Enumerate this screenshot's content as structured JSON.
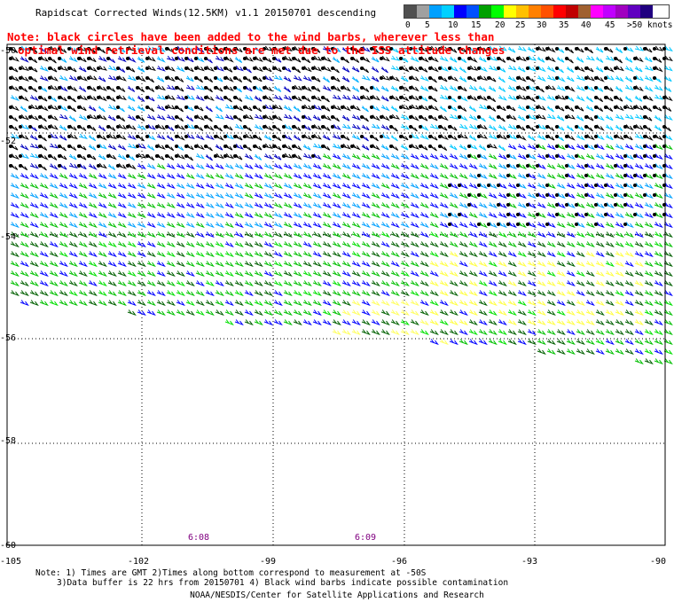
{
  "title": "Rapidscat Corrected Winds(12.5KM) v1.1 20150701 descending",
  "note": {
    "line1": "Note: black circles have been added to the wind barbs, wherever less than",
    "line2": "optimal wind retrieval conditions are met due to the ISS attitude changes"
  },
  "legend": {
    "colors": [
      "#505050",
      "#a0a0a0",
      "#00a0ff",
      "#00d0ff",
      "#0000ff",
      "#0050ff",
      "#00a000",
      "#00ff00",
      "#ffff00",
      "#ffc000",
      "#ff8000",
      "#ff5000",
      "#ff0000",
      "#c00000",
      "#a06030",
      "#ff00ff",
      "#c000ff",
      "#a000c0",
      "#6000c0",
      "#200080"
    ],
    "labels": [
      "0",
      "5",
      "10",
      "15",
      "20",
      "25",
      "30",
      "35",
      "40",
      "45",
      ">50 knots"
    ]
  },
  "axes": {
    "lon_labels": [
      "-105",
      "-102",
      "-99",
      "-96",
      "-93",
      "-90"
    ],
    "lat_labels": [
      "-50",
      "-52",
      "-54",
      "-56",
      "-58",
      "-60"
    ]
  },
  "pass_times": [
    "6:08",
    "6:09"
  ],
  "footnote": {
    "line1": "Note: 1) Times are GMT 2)Times along bottom correspond to measurement at -50S",
    "line2": "3)Data buffer is 22 hrs from 20150701 4) Black wind barbs indicate possible contamination"
  },
  "credit": "NOAA/NESDIS/Center for Satellite Applications and Research"
}
